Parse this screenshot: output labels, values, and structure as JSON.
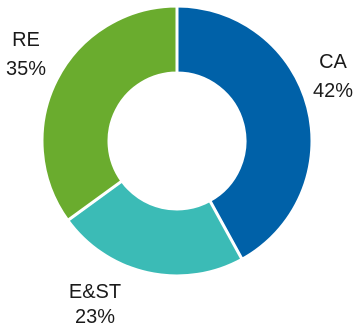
{
  "chart_data": {
    "type": "pie",
    "variant": "donut",
    "slices": [
      {
        "category": "CA",
        "value": 42,
        "value_label": "42%",
        "color": "#0061a8"
      },
      {
        "category": "E&ST",
        "value": 23,
        "value_label": "23%",
        "color": "#3bbbb6"
      },
      {
        "category": "RE",
        "value": 35,
        "value_label": "35%",
        "color": "#6aac2e"
      }
    ],
    "start_angle": "12 o'clock",
    "direction": "clockwise",
    "legend": "none",
    "title": ""
  }
}
